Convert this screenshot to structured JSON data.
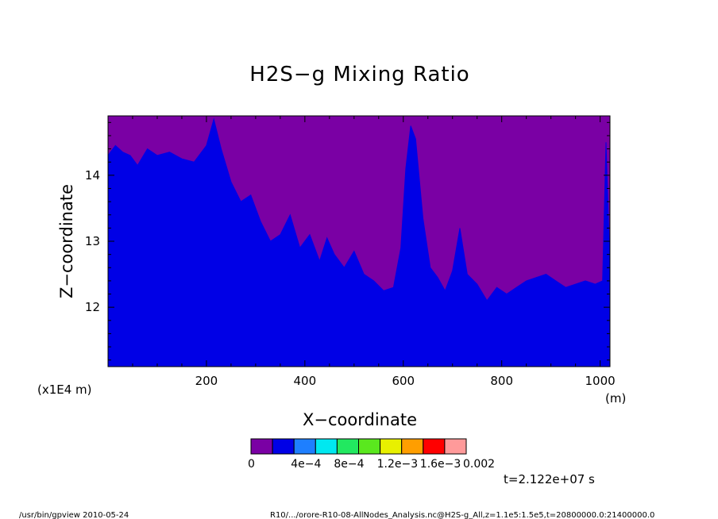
{
  "chart_data": {
    "type": "heatmap",
    "title": "H2S−g Mixing Ratio",
    "xlabel": "X−coordinate",
    "ylabel": "Z−coordinate",
    "x_unit": "(m)",
    "y_unit": "(x1E4 m)",
    "xlim": [
      0,
      1020
    ],
    "ylim": [
      11.1,
      14.9
    ],
    "x_ticks": [
      200,
      400,
      600,
      800,
      1000
    ],
    "y_ticks": [
      12,
      13,
      14
    ],
    "x_tick_labels": [
      "200",
      "400",
      "600",
      "800",
      "1000"
    ],
    "y_tick_labels": [
      "12",
      "13",
      "14"
    ],
    "levels": [
      "0",
      "4e−4",
      "8e−4",
      "1.2e−3",
      "1.6e−3",
      "0.002"
    ],
    "level_colors": [
      "#7a00a4",
      "#0000e6",
      "#1e7fff",
      "#00e8f0",
      "#22e860",
      "#5ae81e",
      "#e8f000",
      "#ff9e00",
      "#ff0000",
      "#ff9a9a"
    ],
    "boundary": {
      "x": [
        0,
        15,
        30,
        45,
        60,
        80,
        100,
        125,
        150,
        175,
        200,
        215,
        230,
        250,
        270,
        290,
        310,
        330,
        350,
        370,
        390,
        410,
        430,
        445,
        460,
        480,
        500,
        520,
        540,
        560,
        580,
        595,
        605,
        615,
        625,
        640,
        655,
        670,
        685,
        700,
        715,
        730,
        750,
        770,
        790,
        810,
        830,
        850,
        870,
        890,
        910,
        930,
        950,
        970,
        990,
        1005,
        1012,
        1020
      ],
      "z": [
        14.3,
        14.45,
        14.35,
        14.3,
        14.15,
        14.4,
        14.3,
        14.35,
        14.25,
        14.2,
        14.45,
        14.85,
        14.4,
        13.9,
        13.6,
        13.7,
        13.3,
        13.0,
        13.1,
        13.4,
        12.9,
        13.1,
        12.7,
        13.05,
        12.8,
        12.6,
        12.85,
        12.5,
        12.4,
        12.25,
        12.3,
        12.9,
        14.1,
        14.75,
        14.55,
        13.35,
        12.6,
        12.45,
        12.25,
        12.55,
        13.2,
        12.5,
        12.35,
        12.1,
        12.3,
        12.2,
        12.3,
        12.4,
        12.45,
        12.5,
        12.4,
        12.3,
        12.35,
        12.4,
        12.35,
        12.4,
        14.5,
        12.6
      ]
    },
    "colorbar_position": "bottom",
    "grid": false
  },
  "annotations": {
    "time": "t=2.122e+07 s",
    "footer_left": "/usr/bin/gpview   2010-05-24",
    "footer_right": "R10/.../orore-R10-08-AllNodes_Analysis.nc@H2S-g_All,z=1.1e5:1.5e5,t=20800000.0:21400000.0"
  }
}
